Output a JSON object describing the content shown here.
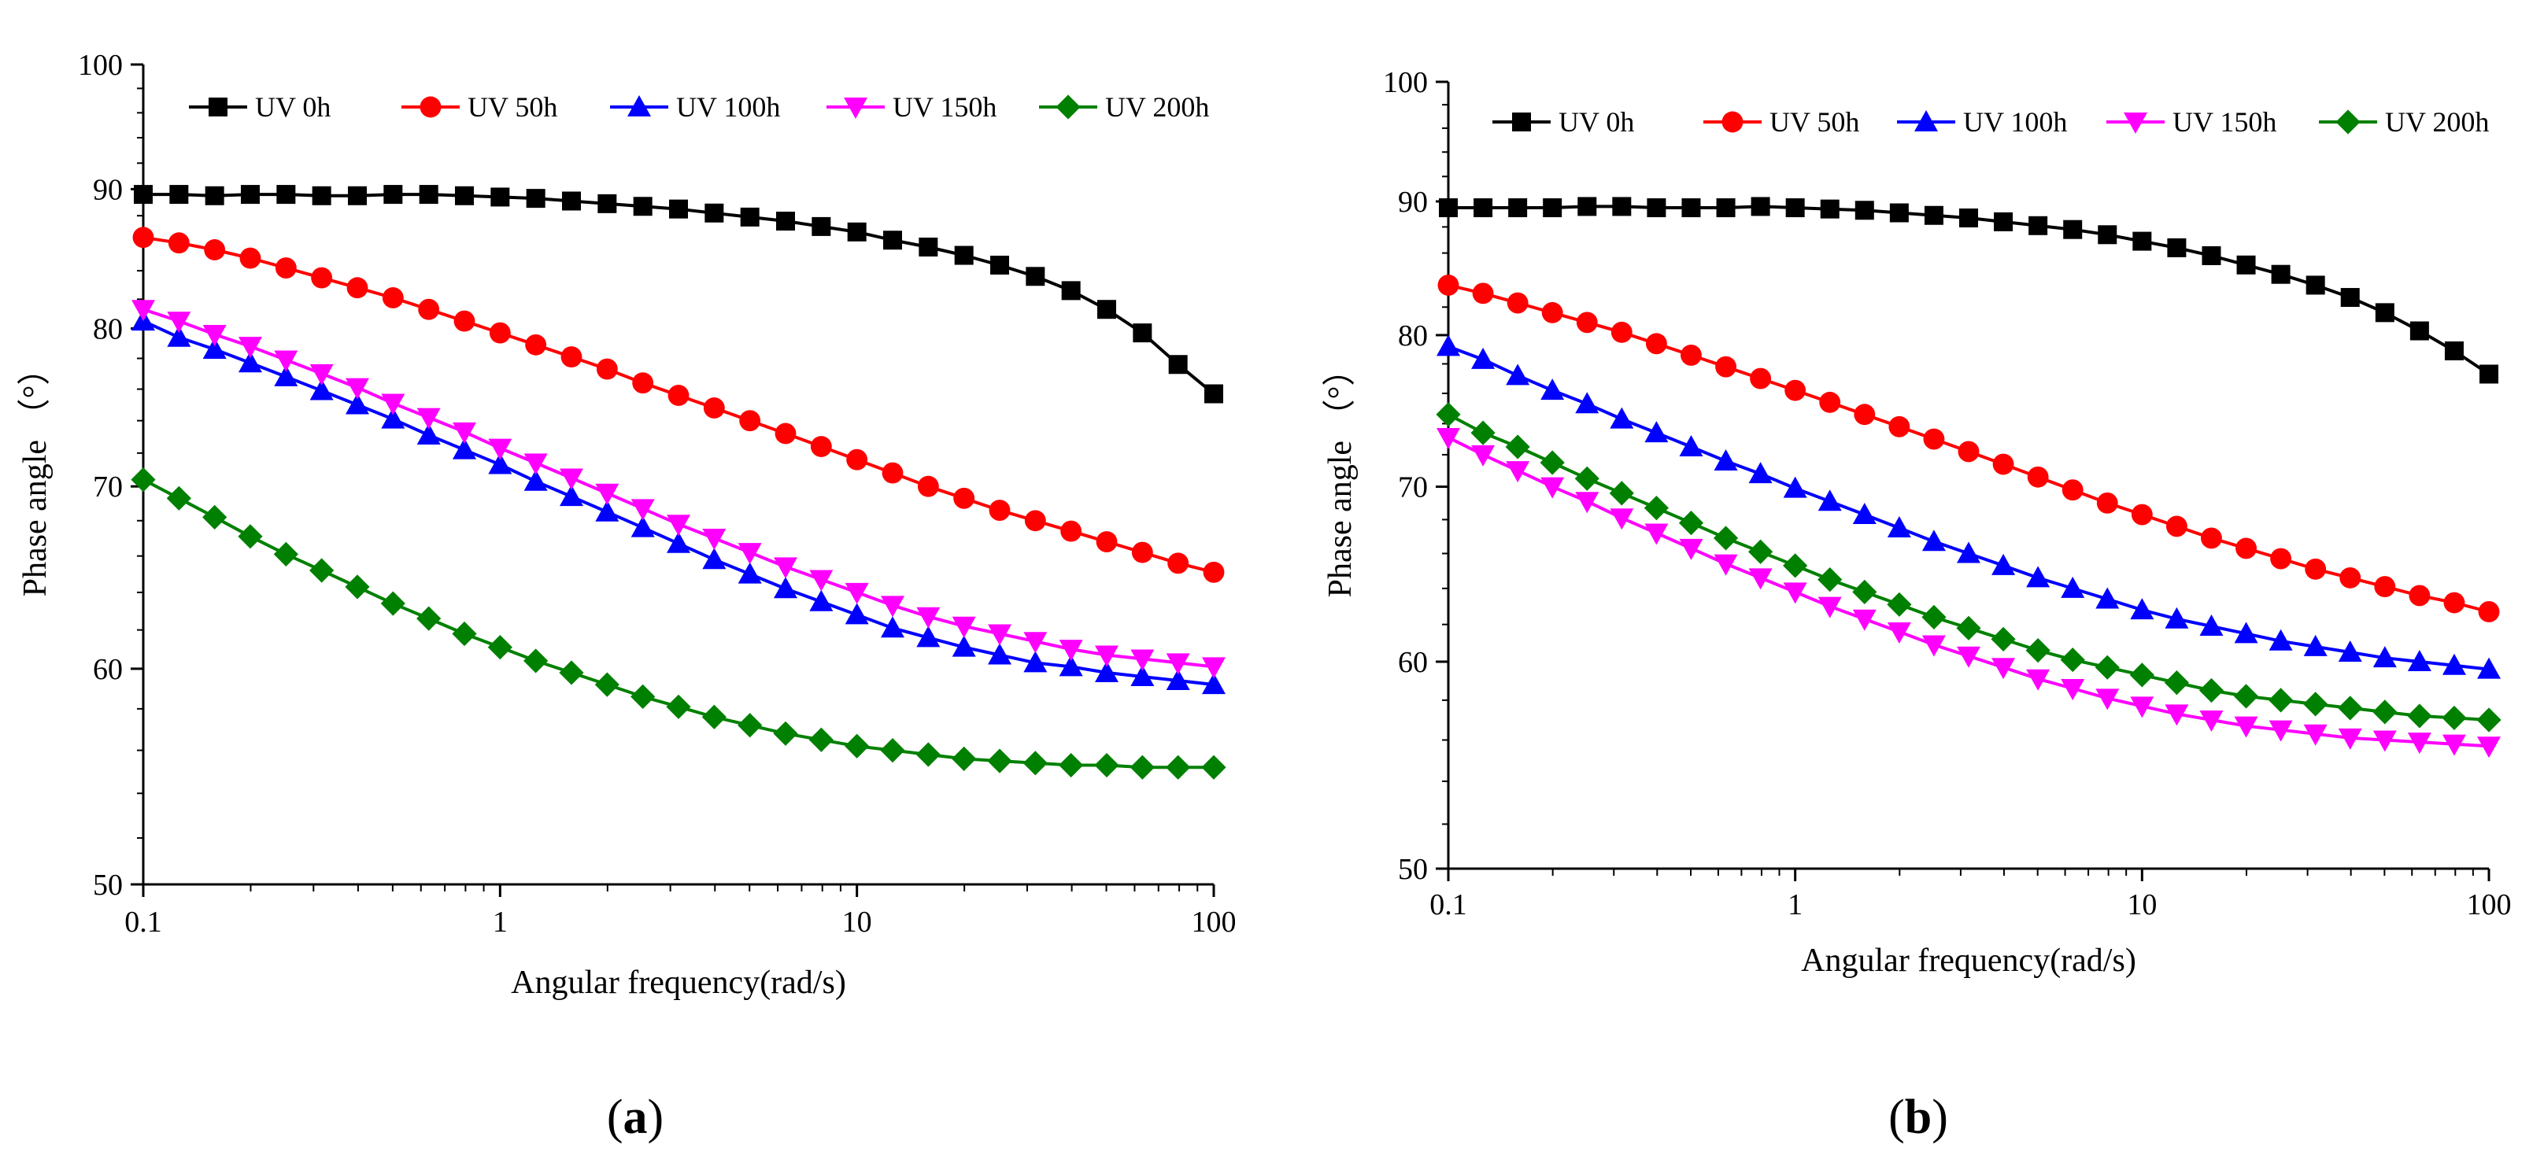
{
  "chart_data": [
    {
      "type": "line",
      "panel_label": "a",
      "xlabel": "Angular frequency(rad/s)",
      "ylabel": "Phase angle （°）",
      "xscale": "log",
      "yscale": "log",
      "xlim": [
        0.1,
        100
      ],
      "ylim": [
        50,
        100
      ],
      "xticks": [
        0.1,
        1,
        10,
        100
      ],
      "xtick_labels": [
        "0.1",
        "1",
        "10",
        "100"
      ],
      "yticks": [
        50,
        60,
        70,
        80,
        90,
        100
      ],
      "ytick_labels": [
        "50",
        "60",
        "70",
        "80",
        "90",
        "100"
      ],
      "legend": "top, single row",
      "grid": false,
      "x": [
        0.1,
        0.1259,
        0.1585,
        0.1995,
        0.2512,
        0.3162,
        0.3981,
        0.5012,
        0.631,
        0.7943,
        1,
        1.2589,
        1.5849,
        1.9953,
        2.5119,
        3.1623,
        3.9811,
        5.0119,
        6.3096,
        7.9433,
        10,
        12.589,
        15.849,
        19.953,
        25.119,
        31.623,
        39.811,
        50.119,
        63.096,
        79.433,
        100
      ],
      "series": [
        {
          "name": "UV 0h",
          "color": "#000000",
          "marker": "square",
          "values": [
            89.6,
            89.6,
            89.5,
            89.6,
            89.6,
            89.5,
            89.5,
            89.6,
            89.6,
            89.5,
            89.4,
            89.3,
            89.1,
            88.9,
            88.7,
            88.5,
            88.2,
            87.9,
            87.6,
            87.2,
            86.8,
            86.2,
            85.7,
            85.1,
            84.4,
            83.6,
            82.6,
            81.3,
            79.7,
            77.6,
            75.7
          ]
        },
        {
          "name": "UV 50h",
          "color": "#ff0000",
          "marker": "circle",
          "values": [
            86.4,
            86.0,
            85.5,
            84.9,
            84.2,
            83.5,
            82.8,
            82.1,
            81.3,
            80.5,
            79.7,
            78.9,
            78.1,
            77.3,
            76.4,
            75.6,
            74.8,
            74.0,
            73.2,
            72.4,
            71.6,
            70.8,
            70.0,
            69.3,
            68.6,
            68.0,
            67.4,
            66.8,
            66.2,
            65.6,
            65.1
          ]
        },
        {
          "name": "UV 100h",
          "color": "#0000ff",
          "marker": "triangle-up",
          "values": [
            80.5,
            79.4,
            78.6,
            77.7,
            76.8,
            75.9,
            75.0,
            74.1,
            73.1,
            72.2,
            71.3,
            70.3,
            69.4,
            68.5,
            67.6,
            66.7,
            65.8,
            65.0,
            64.2,
            63.5,
            62.8,
            62.1,
            61.6,
            61.1,
            60.7,
            60.3,
            60.1,
            59.8,
            59.6,
            59.4,
            59.2
          ]
        },
        {
          "name": "UV 150h",
          "color": "#ff00ff",
          "marker": "triangle-down",
          "values": [
            81.3,
            80.5,
            79.6,
            78.8,
            77.9,
            77.0,
            76.1,
            75.1,
            74.2,
            73.3,
            72.3,
            71.4,
            70.5,
            69.6,
            68.7,
            67.8,
            67.0,
            66.2,
            65.4,
            64.7,
            64.0,
            63.3,
            62.7,
            62.2,
            61.8,
            61.4,
            61.0,
            60.7,
            60.5,
            60.3,
            60.1
          ]
        },
        {
          "name": "UV 200h",
          "color": "#008000",
          "marker": "diamond",
          "values": [
            70.4,
            69.3,
            68.2,
            67.1,
            66.1,
            65.2,
            64.3,
            63.4,
            62.6,
            61.8,
            61.1,
            60.4,
            59.8,
            59.2,
            58.6,
            58.1,
            57.6,
            57.2,
            56.8,
            56.5,
            56.2,
            56.0,
            55.8,
            55.6,
            55.5,
            55.4,
            55.3,
            55.3,
            55.2,
            55.2,
            55.2
          ]
        }
      ]
    },
    {
      "type": "line",
      "panel_label": "b",
      "xlabel": "Angular frequency(rad/s)",
      "ylabel": "Phase angle （°）",
      "xscale": "log",
      "yscale": "log",
      "xlim": [
        0.1,
        100
      ],
      "ylim": [
        50,
        100
      ],
      "xticks": [
        0.1,
        1,
        10,
        100
      ],
      "xtick_labels": [
        "0.1",
        "1",
        "10",
        "100"
      ],
      "yticks": [
        50,
        60,
        70,
        80,
        90,
        100
      ],
      "ytick_labels": [
        "50",
        "60",
        "70",
        "80",
        "90",
        "100"
      ],
      "legend": "top, single row",
      "grid": false,
      "x": [
        0.1,
        0.1259,
        0.1585,
        0.1995,
        0.2512,
        0.3162,
        0.3981,
        0.5012,
        0.631,
        0.7943,
        1,
        1.2589,
        1.5849,
        1.9953,
        2.5119,
        3.1623,
        3.9811,
        5.0119,
        6.3096,
        7.9433,
        10,
        12.589,
        15.849,
        19.953,
        25.119,
        31.623,
        39.811,
        50.119,
        63.096,
        79.433,
        100
      ],
      "series": [
        {
          "name": "UV 0h",
          "color": "#000000",
          "marker": "square",
          "values": [
            89.5,
            89.5,
            89.5,
            89.5,
            89.6,
            89.6,
            89.5,
            89.5,
            89.5,
            89.6,
            89.5,
            89.4,
            89.3,
            89.1,
            88.9,
            88.7,
            88.4,
            88.1,
            87.8,
            87.4,
            86.9,
            86.4,
            85.8,
            85.1,
            84.4,
            83.6,
            82.7,
            81.6,
            80.3,
            78.9,
            77.3
          ]
        },
        {
          "name": "UV 50h",
          "color": "#ff0000",
          "marker": "circle",
          "values": [
            83.6,
            83.0,
            82.3,
            81.6,
            80.9,
            80.2,
            79.4,
            78.6,
            77.8,
            77.0,
            76.2,
            75.4,
            74.6,
            73.8,
            73.0,
            72.2,
            71.4,
            70.6,
            69.8,
            69.0,
            68.3,
            67.6,
            66.9,
            66.3,
            65.7,
            65.1,
            64.6,
            64.1,
            63.6,
            63.2,
            62.7
          ]
        },
        {
          "name": "UV 100h",
          "color": "#0000ff",
          "marker": "triangle-up",
          "values": [
            79.2,
            78.3,
            77.2,
            76.2,
            75.3,
            74.3,
            73.4,
            72.5,
            71.6,
            70.8,
            69.9,
            69.1,
            68.3,
            67.5,
            66.7,
            66.0,
            65.3,
            64.6,
            64.0,
            63.4,
            62.8,
            62.3,
            61.9,
            61.5,
            61.1,
            60.8,
            60.5,
            60.2,
            60.0,
            59.8,
            59.6
          ]
        },
        {
          "name": "UV 150h",
          "color": "#ff00ff",
          "marker": "triangle-down",
          "values": [
            73.1,
            72.0,
            71.0,
            70.0,
            69.1,
            68.1,
            67.2,
            66.3,
            65.4,
            64.6,
            63.8,
            63.0,
            62.3,
            61.6,
            60.9,
            60.3,
            59.7,
            59.1,
            58.6,
            58.1,
            57.7,
            57.3,
            57.0,
            56.7,
            56.5,
            56.3,
            56.1,
            56.0,
            55.9,
            55.8,
            55.7
          ]
        },
        {
          "name": "UV 200h",
          "color": "#008000",
          "marker": "diamond",
          "values": [
            74.6,
            73.4,
            72.5,
            71.5,
            70.5,
            69.6,
            68.7,
            67.8,
            66.9,
            66.1,
            65.3,
            64.5,
            63.8,
            63.1,
            62.4,
            61.8,
            61.2,
            60.6,
            60.1,
            59.7,
            59.3,
            58.9,
            58.5,
            58.2,
            58.0,
            57.8,
            57.6,
            57.4,
            57.2,
            57.1,
            57.0
          ]
        }
      ]
    }
  ]
}
